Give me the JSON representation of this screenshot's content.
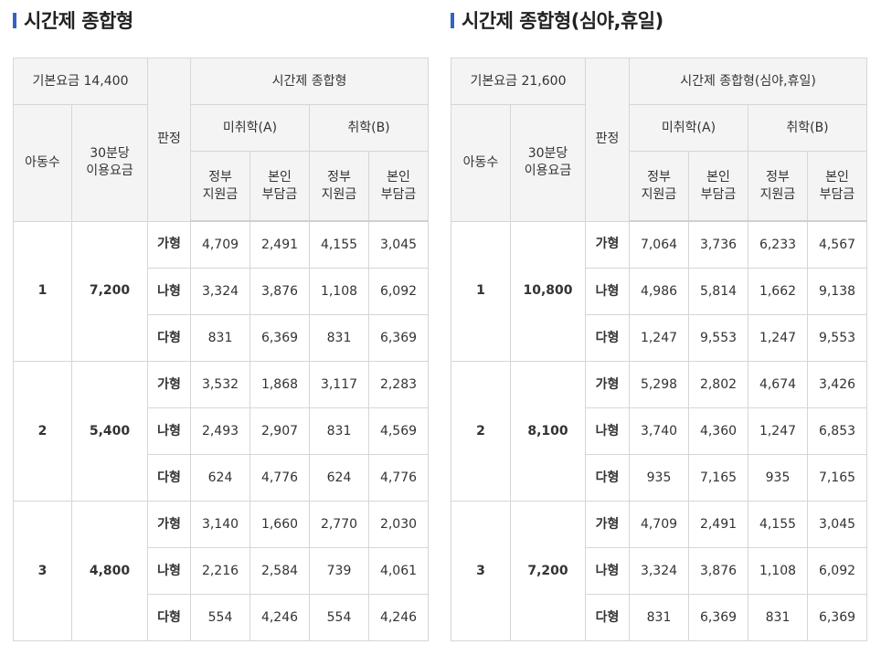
{
  "left": {
    "title": "시간제 종합형",
    "header": {
      "base_fee": "기본요금 14,400",
      "group": "시간제 종합형",
      "judgment": "판정",
      "child_count": "아동수",
      "fee_30min_l1": "30분당",
      "fee_30min_l2": "이용요금",
      "cat_a": "미취학(A)",
      "cat_b": "취학(B)",
      "gov_l1": "정부",
      "gov_l2": "지원금",
      "self_l1": "본인",
      "self_l2": "부담금"
    },
    "groups": [
      {
        "count": "1",
        "fee": "7,200",
        "rows": [
          {
            "type": "가형",
            "a_gov": "4,709",
            "a_self": "2,491",
            "b_gov": "4,155",
            "b_self": "3,045"
          },
          {
            "type": "나형",
            "a_gov": "3,324",
            "a_self": "3,876",
            "b_gov": "1,108",
            "b_self": "6,092"
          },
          {
            "type": "다형",
            "a_gov": "831",
            "a_self": "6,369",
            "b_gov": "831",
            "b_self": "6,369"
          }
        ]
      },
      {
        "count": "2",
        "fee": "5,400",
        "rows": [
          {
            "type": "가형",
            "a_gov": "3,532",
            "a_self": "1,868",
            "b_gov": "3,117",
            "b_self": "2,283"
          },
          {
            "type": "나형",
            "a_gov": "2,493",
            "a_self": "2,907",
            "b_gov": "831",
            "b_self": "4,569"
          },
          {
            "type": "다형",
            "a_gov": "624",
            "a_self": "4,776",
            "b_gov": "624",
            "b_self": "4,776"
          }
        ]
      },
      {
        "count": "3",
        "fee": "4,800",
        "rows": [
          {
            "type": "가형",
            "a_gov": "3,140",
            "a_self": "1,660",
            "b_gov": "2,770",
            "b_self": "2,030"
          },
          {
            "type": "나형",
            "a_gov": "2,216",
            "a_self": "2,584",
            "b_gov": "739",
            "b_self": "4,061"
          },
          {
            "type": "다형",
            "a_gov": "554",
            "a_self": "4,246",
            "b_gov": "554",
            "b_self": "4,246"
          }
        ]
      }
    ]
  },
  "right": {
    "title": "시간제 종합형(심야,휴일)",
    "header": {
      "base_fee": "기본요금 21,600",
      "group": "시간제 종합형(심야,휴일)",
      "judgment": "판정",
      "child_count": "아동수",
      "fee_30min_l1": "30분당",
      "fee_30min_l2": "이용요금",
      "cat_a": "미취학(A)",
      "cat_b": "취학(B)",
      "gov_l1": "정부",
      "gov_l2": "지원금",
      "self_l1": "본인",
      "self_l2": "부담금"
    },
    "groups": [
      {
        "count": "1",
        "fee": "10,800",
        "rows": [
          {
            "type": "가형",
            "a_gov": "7,064",
            "a_self": "3,736",
            "b_gov": "6,233",
            "b_self": "4,567"
          },
          {
            "type": "나형",
            "a_gov": "4,986",
            "a_self": "5,814",
            "b_gov": "1,662",
            "b_self": "9,138"
          },
          {
            "type": "다형",
            "a_gov": "1,247",
            "a_self": "9,553",
            "b_gov": "1,247",
            "b_self": "9,553"
          }
        ]
      },
      {
        "count": "2",
        "fee": "8,100",
        "rows": [
          {
            "type": "가형",
            "a_gov": "5,298",
            "a_self": "2,802",
            "b_gov": "4,674",
            "b_self": "3,426"
          },
          {
            "type": "나형",
            "a_gov": "3,740",
            "a_self": "4,360",
            "b_gov": "1,247",
            "b_self": "6,853"
          },
          {
            "type": "다형",
            "a_gov": "935",
            "a_self": "7,165",
            "b_gov": "935",
            "b_self": "7,165"
          }
        ]
      },
      {
        "count": "3",
        "fee": "7,200",
        "rows": [
          {
            "type": "가형",
            "a_gov": "4,709",
            "a_self": "2,491",
            "b_gov": "4,155",
            "b_self": "3,045"
          },
          {
            "type": "나형",
            "a_gov": "3,324",
            "a_self": "3,876",
            "b_gov": "1,108",
            "b_self": "6,092"
          },
          {
            "type": "다형",
            "a_gov": "831",
            "a_self": "6,369",
            "b_gov": "831",
            "b_self": "6,369"
          }
        ]
      }
    ]
  }
}
